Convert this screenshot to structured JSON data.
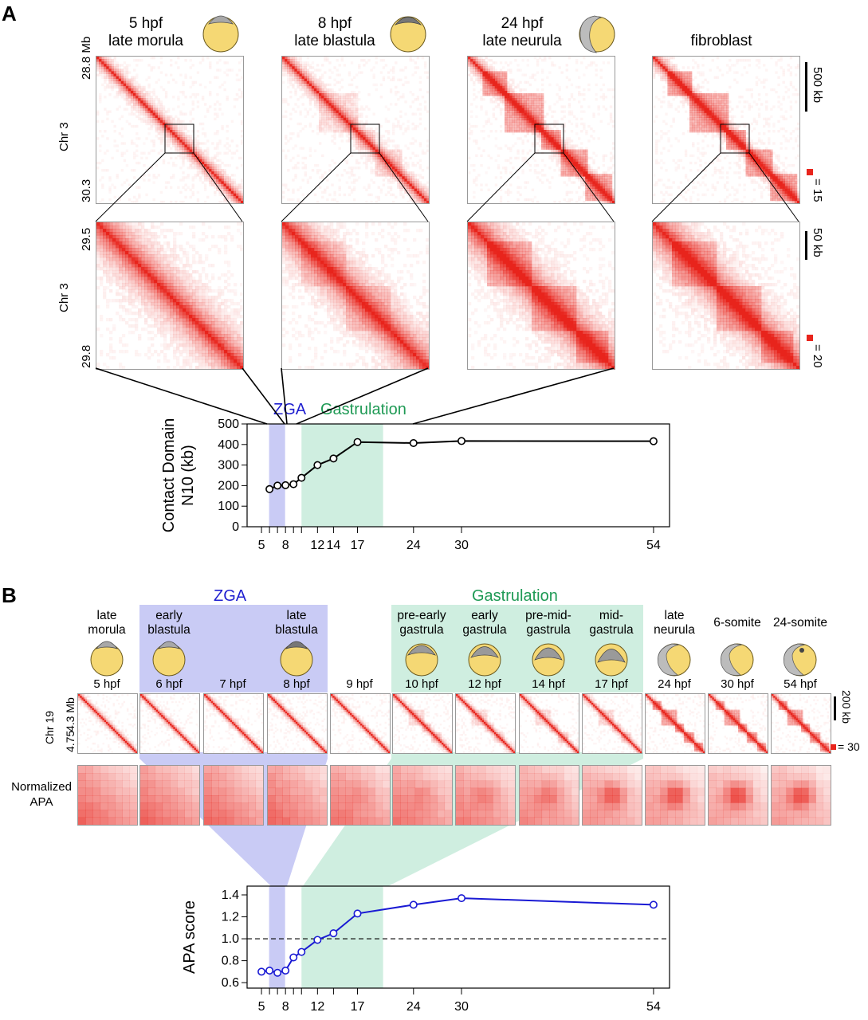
{
  "panelA": {
    "letter": "A",
    "stages": [
      {
        "hpf": "5 hpf",
        "name": "late morula"
      },
      {
        "hpf": "8 hpf",
        "name": "late blastula"
      },
      {
        "hpf": "24 hpf",
        "name": "late neurula"
      },
      {
        "hpf": "",
        "name": "fibroblast"
      }
    ],
    "top_axis": {
      "start": "28.8",
      "end": "30.3",
      "unit": "Mb",
      "chr": "Chr 3"
    },
    "zoom_axis": {
      "start": "29.5",
      "end": "29.8",
      "chr": "Chr 3"
    },
    "scale_top": "500 kb",
    "scale_zoom": "50 kb",
    "color_top": "= 15",
    "color_zoom": "= 20",
    "band_zga": "ZGA",
    "band_gastrulation": "Gastrulation",
    "zga_color": "#c9cbf5",
    "gastrulation_color": "#cfeee0",
    "heat_color": "#e8241c",
    "chart_data": {
      "type": "line",
      "ylabel": "Contact Domain N10 (kb)",
      "xlabel": "",
      "ylim": [
        0,
        500
      ],
      "yticks": [
        0,
        100,
        200,
        300,
        400,
        500
      ],
      "xticks": [
        5,
        8,
        12,
        14,
        17,
        24,
        30,
        54
      ],
      "minor_xticks": [
        5,
        6,
        7,
        8,
        9,
        10,
        12,
        14,
        17,
        24,
        30,
        54
      ],
      "x": [
        6,
        7,
        8,
        9,
        10,
        12,
        14,
        17,
        24,
        30,
        54
      ],
      "y": [
        183,
        200,
        202,
        207,
        238,
        300,
        332,
        412,
        407,
        417,
        416
      ],
      "series_color": "#000000",
      "zga_range": [
        6,
        8
      ],
      "gastrulation_range": [
        10,
        17
      ],
      "title": "",
      "legend": "none"
    }
  },
  "panelB": {
    "letter": "B",
    "band_zga": "ZGA",
    "band_gastrulation": "Gastrulation",
    "mb_label": "4.3 Mb",
    "end_label": "4.75",
    "chr": "Chr 19",
    "apa_label": "Normalized APA",
    "scale": "200 kb",
    "color_scale": "= 30",
    "stages": [
      {
        "name": "late morula",
        "hpf": "5 hpf"
      },
      {
        "name": "early blastula",
        "hpf": "6 hpf"
      },
      {
        "name": "",
        "hpf": "7 hpf"
      },
      {
        "name": "late blastula",
        "hpf": "8 hpf"
      },
      {
        "name": "",
        "hpf": "9 hpf"
      },
      {
        "name": "pre-early gastrula",
        "hpf": "10 hpf"
      },
      {
        "name": "early gastrula",
        "hpf": "12 hpf"
      },
      {
        "name": "pre-mid- gastrula",
        "hpf": "14 hpf"
      },
      {
        "name": "mid- gastrula",
        "hpf": "17 hpf"
      },
      {
        "name": "late neurula",
        "hpf": "24 hpf"
      },
      {
        "name": "6-somite",
        "hpf": "30 hpf"
      },
      {
        "name": "24-somite",
        "hpf": "54 hpf"
      }
    ],
    "chart_data": {
      "type": "line",
      "ylabel": "APA score",
      "xlabel": "",
      "ylim": [
        0.55,
        1.48
      ],
      "yticks": [
        0.6,
        0.8,
        1.0,
        1.2,
        1.4
      ],
      "ytick_labels": [
        "0.6",
        "0.8",
        "1.0",
        "1.2",
        "1.4"
      ],
      "xticks": [
        5,
        8,
        12,
        17,
        24,
        30,
        54
      ],
      "minor_xticks": [
        5,
        6,
        7,
        8,
        9,
        10,
        12,
        14,
        17,
        24,
        30,
        54
      ],
      "x": [
        5,
        6,
        7,
        8,
        9,
        10,
        12,
        14,
        17,
        24,
        30,
        54
      ],
      "y": [
        0.7,
        0.71,
        0.69,
        0.71,
        0.83,
        0.88,
        0.99,
        1.05,
        1.23,
        1.31,
        1.37,
        1.31
      ],
      "reference_line": 1.0,
      "series_color": "#1a1ad4",
      "zga_range": [
        6,
        8
      ],
      "gastrulation_range": [
        10,
        17
      ],
      "title": "",
      "legend": "none"
    }
  }
}
